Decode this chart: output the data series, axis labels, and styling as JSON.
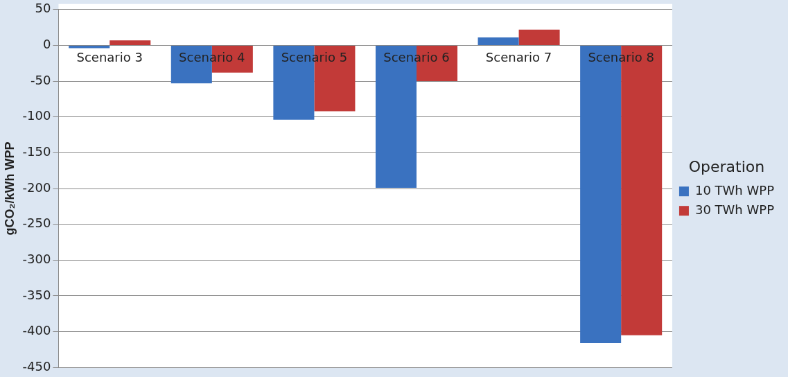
{
  "chart_data": {
    "type": "bar",
    "categories": [
      "Scenario 3",
      "Scenario 4",
      "Scenario 5",
      "Scenario 6",
      "Scenario 7",
      "Scenario 8"
    ],
    "series": [
      {
        "name": "10 TWh WPP",
        "color": "#3a72c0",
        "values": [
          -4,
          -53,
          -104,
          -199,
          11,
          -416
        ]
      },
      {
        "name": "30 TWh WPP",
        "color": "#c23a38",
        "values": [
          7,
          -38,
          -92,
          -50,
          22,
          -405
        ]
      }
    ],
    "ylabel": "gCO₂/kWh WPP",
    "legend_title": "Operation",
    "legend": "right",
    "ylim": [
      -450,
      50
    ],
    "yticks": [
      -450,
      -400,
      -350,
      -300,
      -250,
      -200,
      -150,
      -100,
      -50,
      0,
      50
    ],
    "grid": "y"
  }
}
